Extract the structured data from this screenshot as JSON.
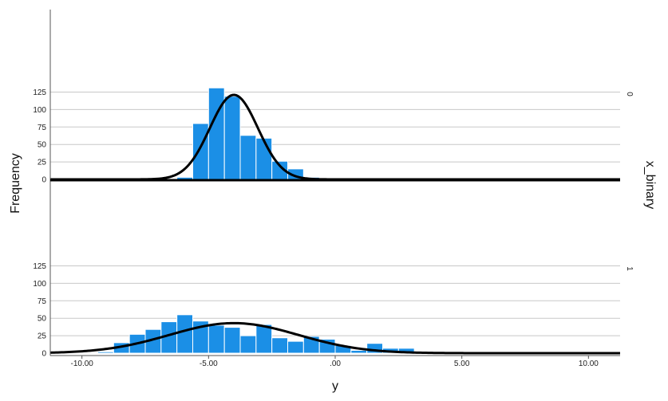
{
  "chart_data": {
    "type": "bar",
    "subtype": "paneled histogram with fitted normal curves",
    "xlabel": "y",
    "ylabel": "Frequency",
    "panel_variable": "x_binary",
    "bin_width": 0.625,
    "xlim": [
      -11.25,
      11.25
    ],
    "x_ticks": [
      -10,
      -5,
      0,
      5,
      10
    ],
    "x_tick_labels": [
      "-10.00",
      "-5.00",
      ".00",
      "5.00",
      "10.00"
    ],
    "ylim": [
      0,
      140
    ],
    "y_ticks": [
      0,
      25,
      50,
      75,
      100,
      125
    ],
    "y_tick_labels": [
      "0",
      "25",
      "50",
      "75",
      "100",
      "125"
    ],
    "grid": "horizontal",
    "colors": {
      "bar_fill": "#1b8fe6",
      "bar_stroke": "#ffffff",
      "curve": "#000000",
      "grid": "#c8c8c8"
    },
    "panels": [
      {
        "label": "0",
        "bins": [
          {
            "x0": -6.25,
            "count": 3
          },
          {
            "x0": -5.625,
            "count": 80
          },
          {
            "x0": -5.0,
            "count": 131
          },
          {
            "x0": -4.375,
            "count": 119
          },
          {
            "x0": -3.75,
            "count": 63
          },
          {
            "x0": -3.125,
            "count": 59
          },
          {
            "x0": -2.5,
            "count": 26
          },
          {
            "x0": -1.875,
            "count": 15
          },
          {
            "x0": -1.25,
            "count": 3
          }
        ],
        "normal_fit": {
          "mean": -4.0,
          "sd": 0.95,
          "peak": 121
        }
      },
      {
        "label": "1",
        "bins": [
          {
            "x0": -9.375,
            "count": 2
          },
          {
            "x0": -8.75,
            "count": 15
          },
          {
            "x0": -8.125,
            "count": 27
          },
          {
            "x0": -7.5,
            "count": 34
          },
          {
            "x0": -6.875,
            "count": 45
          },
          {
            "x0": -6.25,
            "count": 55
          },
          {
            "x0": -5.625,
            "count": 46
          },
          {
            "x0": -5.0,
            "count": 40
          },
          {
            "x0": -4.375,
            "count": 37
          },
          {
            "x0": -3.75,
            "count": 25
          },
          {
            "x0": -3.125,
            "count": 41
          },
          {
            "x0": -2.5,
            "count": 22
          },
          {
            "x0": -1.875,
            "count": 17
          },
          {
            "x0": -1.25,
            "count": 24
          },
          {
            "x0": -0.625,
            "count": 20
          },
          {
            "x0": 0.0,
            "count": 11
          },
          {
            "x0": 0.625,
            "count": 4
          },
          {
            "x0": 1.25,
            "count": 14
          },
          {
            "x0": 1.875,
            "count": 7
          },
          {
            "x0": 2.5,
            "count": 7
          }
        ],
        "normal_fit": {
          "mean": -4.0,
          "sd": 2.55,
          "peak": 43
        }
      }
    ]
  }
}
